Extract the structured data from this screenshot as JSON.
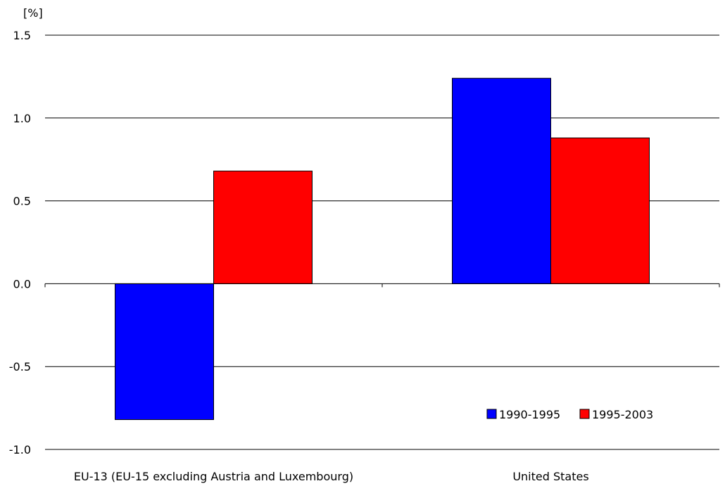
{
  "chart_data": {
    "type": "bar",
    "title": "",
    "unit_label": "[%]",
    "xlabel": "",
    "ylabel": "",
    "categories": [
      "EU-13 (EU-15 excluding Austria and Luxembourg)",
      "United States"
    ],
    "series": [
      {
        "name": "1990-1995",
        "color": "#0000ff",
        "values": [
          -0.82,
          1.24
        ]
      },
      {
        "name": "1995-2003",
        "color": "#ff0000",
        "values": [
          0.68,
          0.88
        ]
      }
    ],
    "ylim": [
      -1.0,
      1.5
    ],
    "yticks": [
      1.5,
      1.0,
      0.5,
      0.0,
      -0.5,
      -1.0
    ],
    "ytick_labels": [
      "1.5",
      "1.0",
      "0.5",
      "0.0",
      "-0.5",
      "-1.0"
    ],
    "grid": true,
    "legend_position": "bottom-right"
  }
}
